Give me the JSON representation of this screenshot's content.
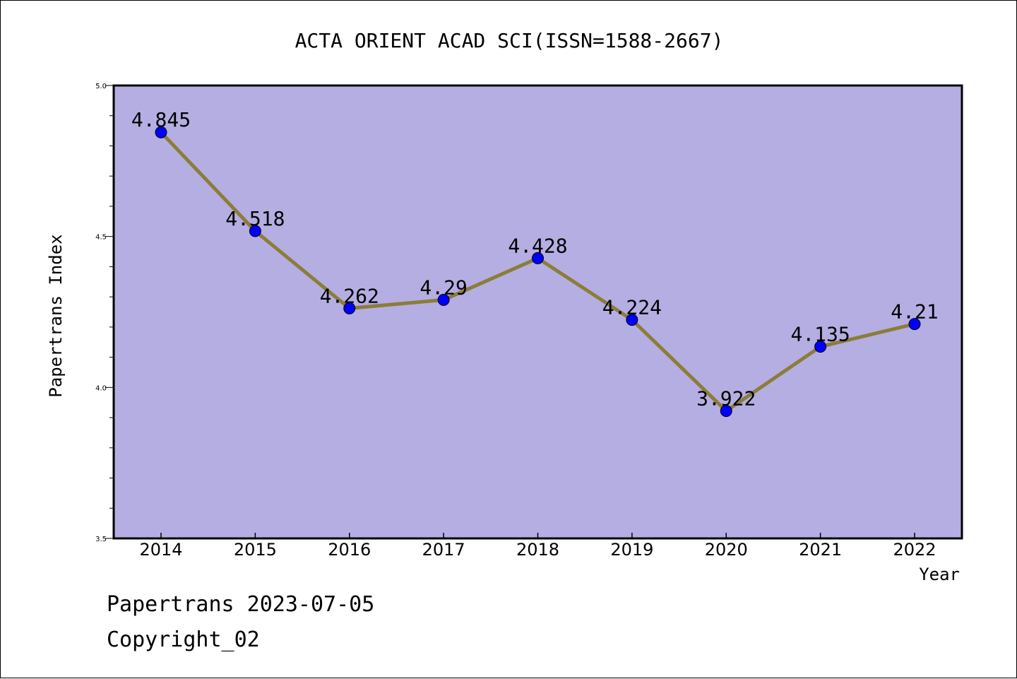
{
  "footer": {
    "line1": "Papertrans 2023-07-05",
    "line2": "Copyright_02"
  },
  "chart_data": {
    "type": "line",
    "title": "ACTA ORIENT ACAD SCI(ISSN=1588-2667)",
    "xlabel": "Year",
    "ylabel": "Papertrans Index",
    "categories": [
      "2014",
      "2015",
      "2016",
      "2017",
      "2018",
      "2019",
      "2020",
      "2021",
      "2022"
    ],
    "series": [
      {
        "values": [
          4.845,
          4.518,
          4.262,
          4.29,
          4.428,
          4.224,
          3.922,
          4.135,
          4.21
        ],
        "labels": [
          "4.845",
          "4.518",
          "4.262",
          "4.29",
          "4.428",
          "4.224",
          "3.922",
          "4.135",
          "4.21"
        ]
      }
    ],
    "ylim": [
      3.5,
      5.0
    ],
    "yticks": [
      "3.5",
      "4.0",
      "4.5",
      "5.0"
    ],
    "grid": false,
    "colors": {
      "plot_background": "#b5aee2",
      "line": "#8b7d3a",
      "marker": "#0000ff"
    }
  }
}
